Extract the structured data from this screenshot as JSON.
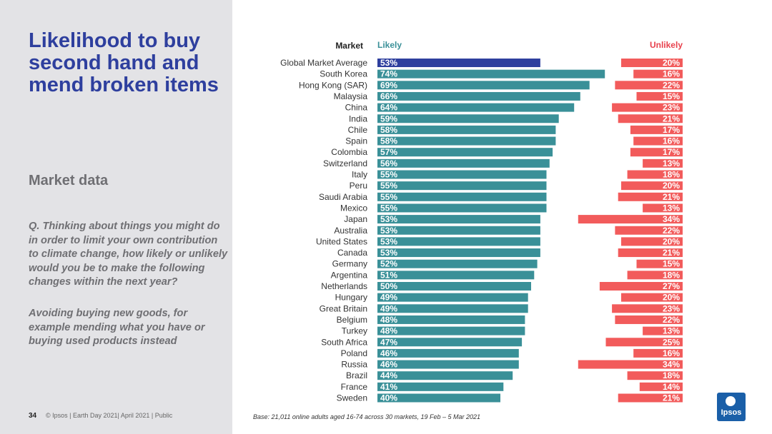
{
  "page": {
    "title": "Likelihood to buy second hand and mend broken items",
    "subtitle": "Market data",
    "question": "Q. Thinking about things you might do in order to limit your own contribution to climate change, how likely or unlikely would you be to make the following changes within the next year?",
    "statement": "Avoiding buying new goods, for example mending what you have or buying used products instead",
    "page_number": "34",
    "footer": "© Ipsos | Earth Day 2021| April 2021 | Public",
    "base_note": "Base: 21,011 online adults aged 16-74 across 30 markets,  19 Feb – 5 Mar 2021",
    "logo_text": "Ipsos"
  },
  "colors": {
    "highlight": "#2e3f9e",
    "likely": "#3a9098",
    "unlikely": "#f25b5b",
    "likely_header": "#3a9098",
    "unlikely_header": "#e8414d"
  },
  "chart_data": {
    "type": "bar",
    "headers": {
      "market": "Market",
      "likely": "Likely",
      "unlikely": "Unlikely"
    },
    "categories": [
      "Global Market Average",
      "South Korea",
      "Hong Kong (SAR)",
      "Malaysia",
      "China",
      "India",
      "Chile",
      "Spain",
      "Colombia",
      "Switzerland",
      "Italy",
      "Peru",
      "Saudi Arabia",
      "Mexico",
      "Japan",
      "Australia",
      "United States",
      "Canada",
      "Germany",
      "Argentina",
      "Netherlands",
      "Hungary",
      "Great Britain",
      "Belgium",
      "Turkey",
      "South Africa",
      "Poland",
      "Russia",
      "Brazil",
      "France",
      "Sweden"
    ],
    "series": [
      {
        "name": "Likely",
        "values": [
          53,
          74,
          69,
          66,
          64,
          59,
          58,
          58,
          57,
          56,
          55,
          55,
          55,
          55,
          53,
          53,
          53,
          53,
          52,
          51,
          50,
          49,
          49,
          48,
          48,
          47,
          46,
          46,
          44,
          41,
          40
        ]
      },
      {
        "name": "Unlikely",
        "values": [
          20,
          16,
          22,
          15,
          23,
          21,
          17,
          16,
          17,
          13,
          18,
          20,
          21,
          13,
          34,
          22,
          20,
          21,
          15,
          18,
          27,
          20,
          23,
          22,
          13,
          25,
          16,
          34,
          18,
          14,
          21
        ]
      }
    ],
    "labels_likely": [
      "53%",
      "74%",
      "69%",
      "66%",
      "64%",
      "59%",
      "58%",
      "58%",
      "57%",
      "56%",
      "55%",
      "55%",
      "55%",
      "55%",
      "53%",
      "53%",
      "53%",
      "53%",
      "52%",
      "51%",
      "50%",
      "49%",
      "49%",
      "48%",
      "48%",
      "47%",
      "46%",
      "46%",
      "44%",
      "41%",
      "40%"
    ],
    "labels_unlikely": [
      "20%",
      "16%",
      "22%",
      "15%",
      "23%",
      "21%",
      "17%",
      "16%",
      "17%",
      "13%",
      "18%",
      "20%",
      "21%",
      "13%",
      "34%",
      "22%",
      "20%",
      "21%",
      "15%",
      "18%",
      "27%",
      "20%",
      "23%",
      "22%",
      "13%",
      "25%",
      "16%",
      "34%",
      "18%",
      "14%",
      "21%"
    ]
  }
}
